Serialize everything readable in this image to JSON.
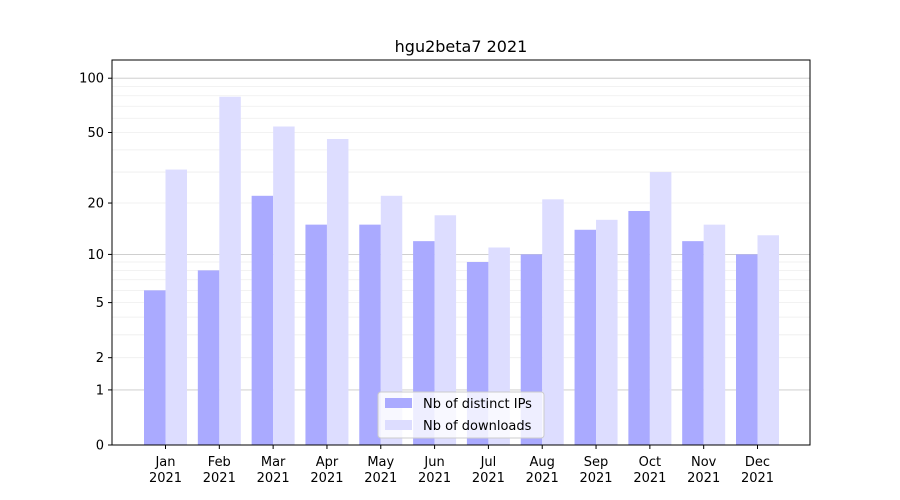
{
  "chart_data": {
    "type": "bar",
    "title": "hgu2beta7 2021",
    "xlabel": "",
    "ylabel": "",
    "yscale": "log(y+1)",
    "ylim": [
      0,
      120
    ],
    "yticks": [
      0,
      1,
      2,
      5,
      10,
      20,
      50,
      100
    ],
    "categories": [
      "Jan\n2021",
      "Feb\n2021",
      "Mar\n2021",
      "Apr\n2021",
      "May\n2021",
      "Jun\n2021",
      "Jul\n2021",
      "Aug\n2021",
      "Sep\n2021",
      "Oct\n2021",
      "Nov\n2021",
      "Dec\n2021"
    ],
    "series": [
      {
        "name": "Nb of distinct IPs",
        "color": "#aaaaff",
        "values": [
          6,
          8,
          22,
          15,
          15,
          12,
          9,
          10,
          14,
          18,
          12,
          10
        ]
      },
      {
        "name": "Nb of downloads",
        "color": "#ddddff",
        "values": [
          31,
          79,
          54,
          46,
          22,
          17,
          11,
          21,
          16,
          30,
          15,
          13
        ]
      }
    ],
    "grid": true,
    "legend": "bottom-center"
  }
}
